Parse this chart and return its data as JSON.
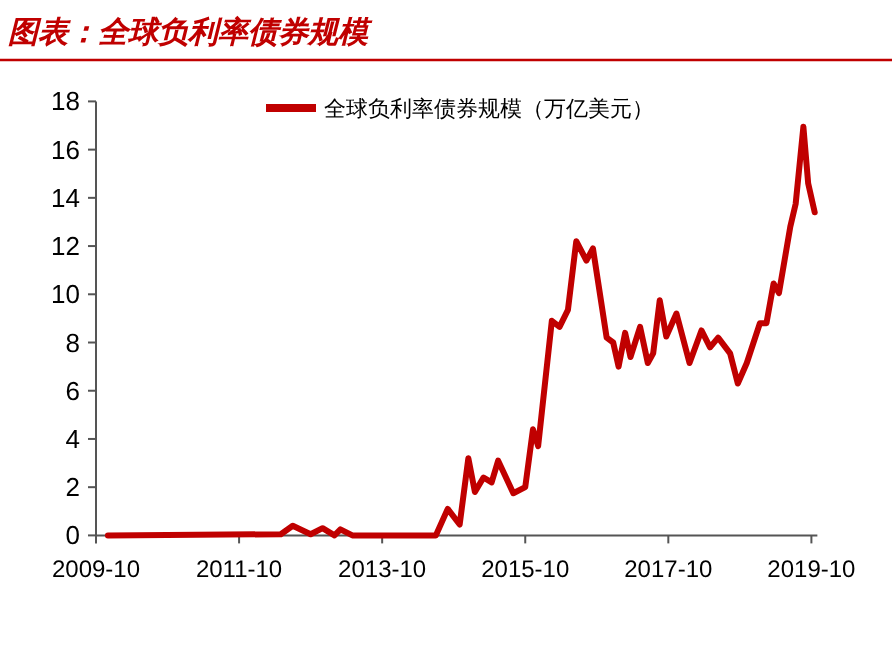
{
  "chart_data": {
    "type": "line",
    "title": "图表：全球负利率债券规模",
    "x": [
      "2009-12",
      "2012-05",
      "2012-07",
      "2012-10",
      "2012-12",
      "2013-02",
      "2013-03",
      "2013-05",
      "2014-07",
      "2014-09",
      "2014-11",
      "2014-12-15",
      "2015-01-18",
      "2015-03",
      "2015-04-12",
      "2015-05-15",
      "2015-08",
      "2015-10",
      "2015-11-10",
      "2015-12-06",
      "2016-02-15",
      "2016-03-24",
      "2016-05-06",
      "2016-06-18",
      "2016-08-09",
      "2016-09-12",
      "2016-11-21",
      "2016-12-24",
      "2017-01-21",
      "2017-02-24",
      "2017-03-21",
      "2017-05-09",
      "2017-06-18",
      "2017-07-15",
      "2017-08-18",
      "2017-09-21",
      "2017-11-12",
      "2018-01-18",
      "2018-03-18",
      "2018-05",
      "2018-06-12",
      "2018-08-12",
      "2018-09-21",
      "2018-11-06",
      "2019-01-12",
      "2019-02-15",
      "2019-03-21",
      "2019-04-18",
      "2019-06-15",
      "2019-07-12",
      "2019-08-21",
      "2019-09-15",
      "2019-10-18"
    ],
    "series": [
      {
        "name": "全球负利率债券规模（万亿美元）",
        "color": "#c00000",
        "values": [
          0,
          0.05,
          0.4,
          0.05,
          0.3,
          0,
          0.25,
          0,
          0,
          1.1,
          0.45,
          3.2,
          1.8,
          2.4,
          2.2,
          3.1,
          1.75,
          2.0,
          4.4,
          3.7,
          8.9,
          8.65,
          9.35,
          12.2,
          11.4,
          11.9,
          8.2,
          8.0,
          7.0,
          8.4,
          7.4,
          8.65,
          7.15,
          7.55,
          9.75,
          8.25,
          9.2,
          7.15,
          8.5,
          7.8,
          8.2,
          7.55,
          6.3,
          7.15,
          8.8,
          8.8,
          10.45,
          10.05,
          12.8,
          13.75,
          16.95,
          14.6,
          13.4
        ]
      }
    ],
    "xlim": [
      "2009-10",
      "2019-11"
    ],
    "xticks": [
      {
        "value": "2009-10",
        "label": "2009-10"
      },
      {
        "value": "2011-10",
        "label": "2011-10"
      },
      {
        "value": "2013-10",
        "label": "2013-10"
      },
      {
        "value": "2015-10",
        "label": "2015-10"
      },
      {
        "value": "2017-10",
        "label": "2017-10"
      },
      {
        "value": "2019-10",
        "label": "2019-10"
      }
    ],
    "ylim": [
      0,
      18
    ],
    "yticks": [
      0,
      2,
      4,
      6,
      8,
      10,
      12,
      14,
      16,
      18
    ],
    "grid": false,
    "legend": "top",
    "marker": "none",
    "line_style": "solid"
  }
}
